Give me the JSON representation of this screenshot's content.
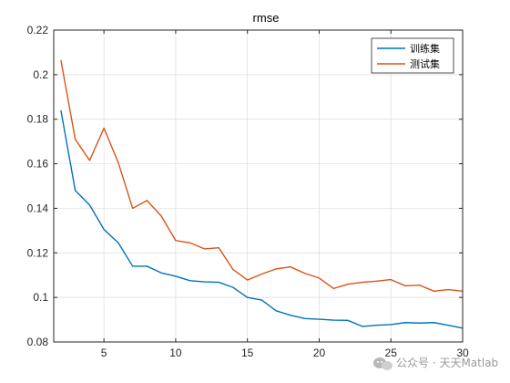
{
  "chart_data": {
    "type": "line",
    "title": "rmse",
    "xlabel": "",
    "ylabel": "",
    "xlim": [
      1.5,
      30
    ],
    "ylim": [
      0.08,
      0.22
    ],
    "x_ticks": [
      5,
      10,
      15,
      20,
      25,
      30
    ],
    "y_ticks": [
      0.08,
      0.1,
      0.12,
      0.14,
      0.16,
      0.18,
      0.2,
      0.22
    ],
    "y_tick_labels": [
      "0.08",
      "0.1",
      "0.12",
      "0.14",
      "0.16",
      "0.18",
      "0.2",
      "0.22"
    ],
    "grid": true,
    "legend_position": "top-right",
    "x": [
      2,
      3,
      4,
      5,
      6,
      7,
      8,
      9,
      10,
      11,
      12,
      13,
      14,
      15,
      16,
      17,
      18,
      19,
      20,
      21,
      22,
      23,
      24,
      25,
      26,
      27,
      28,
      29,
      30
    ],
    "series": [
      {
        "name": "训练集",
        "color": "#0072BD",
        "values": [
          0.184,
          0.148,
          0.1415,
          0.1305,
          0.1245,
          0.114,
          0.114,
          0.111,
          0.1095,
          0.1075,
          0.107,
          0.1068,
          0.1045,
          0.1,
          0.0988,
          0.094,
          0.092,
          0.0905,
          0.0902,
          0.0898,
          0.0897,
          0.087,
          0.0875,
          0.0878,
          0.0887,
          0.0885,
          0.0887,
          0.0875,
          0.0862
        ]
      },
      {
        "name": "测试集",
        "color": "#D95319",
        "values": [
          0.2065,
          0.171,
          0.1615,
          0.176,
          0.1605,
          0.14,
          0.1435,
          0.1365,
          0.1255,
          0.1245,
          0.1218,
          0.1223,
          0.1125,
          0.1078,
          0.1105,
          0.1128,
          0.1137,
          0.1108,
          0.1087,
          0.104,
          0.1059,
          0.1068,
          0.1073,
          0.108,
          0.1052,
          0.1055,
          0.1028,
          0.1035,
          0.1028
        ]
      }
    ]
  },
  "watermark": {
    "icon": "wechat-icon",
    "text": "公众号 · 天天Matlab"
  }
}
